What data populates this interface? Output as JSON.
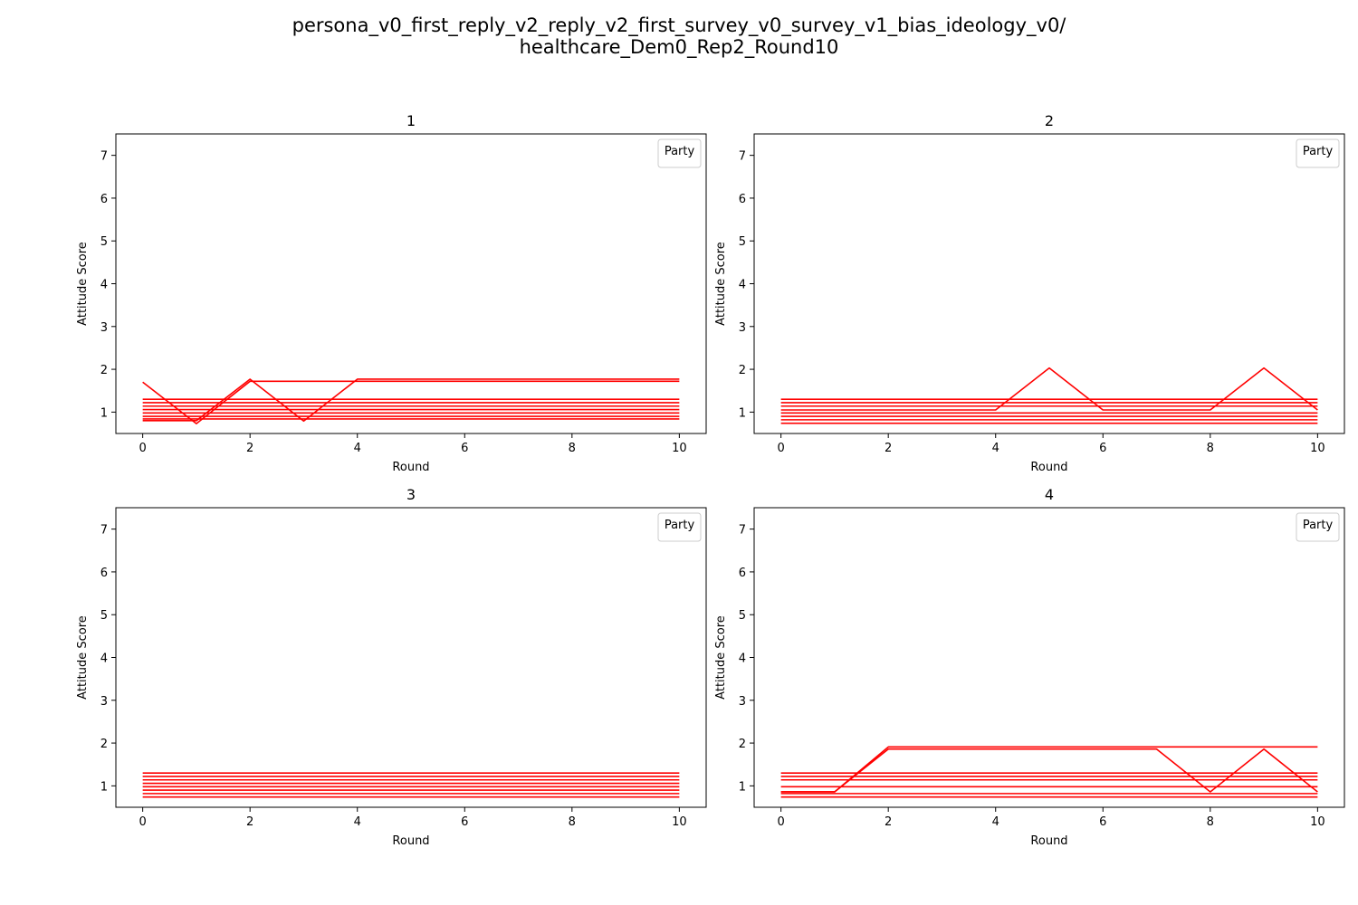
{
  "figure": {
    "title_line1": "persona_v0_first_reply_v2_reply_v2_first_survey_v0_survey_v1_bias_ideology_v0/",
    "title_line2": "healthcare_Dem0_Rep2_Round10"
  },
  "colors": {
    "line": "#ff0000",
    "axis": "#000000",
    "legend_border": "#cccccc"
  },
  "chart_data": [
    {
      "type": "line",
      "title": "1",
      "xlabel": "Round",
      "ylabel": "Attitude Score",
      "xlim": [
        -0.5,
        10.5
      ],
      "ylim": [
        0.5,
        7.5
      ],
      "xticks": [
        0,
        2,
        4,
        6,
        8,
        10
      ],
      "yticks": [
        1,
        2,
        3,
        4,
        5,
        6,
        7
      ],
      "grid": false,
      "legend": {
        "title": "Party",
        "placement": "upper right"
      },
      "x": [
        0,
        1,
        2,
        3,
        4,
        5,
        6,
        7,
        8,
        9,
        10
      ],
      "series": [
        {
          "values": [
            1.7,
            0.73,
            1.72,
            1.72,
            1.72,
            1.72,
            1.72,
            1.72,
            1.72,
            1.72,
            1.72
          ]
        },
        {
          "values": [
            0.8,
            0.8,
            1.77,
            0.79,
            1.77,
            1.77,
            1.77,
            1.77,
            1.77,
            1.77,
            1.77
          ]
        },
        {
          "values": [
            1.3,
            1.3,
            1.3,
            1.3,
            1.3,
            1.3,
            1.3,
            1.3,
            1.3,
            1.3,
            1.3
          ]
        },
        {
          "values": [
            1.22,
            1.22,
            1.22,
            1.22,
            1.22,
            1.22,
            1.22,
            1.22,
            1.22,
            1.22,
            1.22
          ]
        },
        {
          "values": [
            1.14,
            1.14,
            1.14,
            1.14,
            1.14,
            1.14,
            1.14,
            1.14,
            1.14,
            1.14,
            1.14
          ]
        },
        {
          "values": [
            1.06,
            1.06,
            1.06,
            1.06,
            1.06,
            1.06,
            1.06,
            1.06,
            1.06,
            1.06,
            1.06
          ]
        },
        {
          "values": [
            0.98,
            0.98,
            0.98,
            0.98,
            0.98,
            0.98,
            0.98,
            0.98,
            0.98,
            0.98,
            0.98
          ]
        },
        {
          "values": [
            0.9,
            0.9,
            0.9,
            0.9,
            0.9,
            0.9,
            0.9,
            0.9,
            0.9,
            0.9,
            0.9
          ]
        },
        {
          "values": [
            0.84,
            0.84,
            0.84,
            0.84,
            0.84,
            0.84,
            0.84,
            0.84,
            0.84,
            0.84,
            0.84
          ]
        }
      ]
    },
    {
      "type": "line",
      "title": "2",
      "xlabel": "Round",
      "ylabel": "Attitude Score",
      "xlim": [
        -0.5,
        10.5
      ],
      "ylim": [
        0.5,
        7.5
      ],
      "xticks": [
        0,
        2,
        4,
        6,
        8,
        10
      ],
      "yticks": [
        1,
        2,
        3,
        4,
        5,
        6,
        7
      ],
      "grid": false,
      "legend": {
        "title": "Party",
        "placement": "upper right"
      },
      "x": [
        0,
        1,
        2,
        3,
        4,
        5,
        6,
        7,
        8,
        9,
        10
      ],
      "series": [
        {
          "values": [
            1.05,
            1.05,
            1.05,
            1.05,
            1.05,
            2.03,
            1.05,
            1.05,
            1.05,
            2.03,
            1.05
          ]
        },
        {
          "values": [
            1.3,
            1.3,
            1.3,
            1.3,
            1.3,
            1.3,
            1.3,
            1.3,
            1.3,
            1.3,
            1.3
          ]
        },
        {
          "values": [
            1.22,
            1.22,
            1.22,
            1.22,
            1.22,
            1.22,
            1.22,
            1.22,
            1.22,
            1.22,
            1.22
          ]
        },
        {
          "values": [
            1.14,
            1.14,
            1.14,
            1.14,
            1.14,
            1.14,
            1.14,
            1.14,
            1.14,
            1.14,
            1.14
          ]
        },
        {
          "values": [
            0.98,
            0.98,
            0.98,
            0.98,
            0.98,
            0.98,
            0.98,
            0.98,
            0.98,
            0.98,
            0.98
          ]
        },
        {
          "values": [
            0.9,
            0.9,
            0.9,
            0.9,
            0.9,
            0.9,
            0.9,
            0.9,
            0.9,
            0.9,
            0.9
          ]
        },
        {
          "values": [
            0.82,
            0.82,
            0.82,
            0.82,
            0.82,
            0.82,
            0.82,
            0.82,
            0.82,
            0.82,
            0.82
          ]
        },
        {
          "values": [
            0.74,
            0.74,
            0.74,
            0.74,
            0.74,
            0.74,
            0.74,
            0.74,
            0.74,
            0.74,
            0.74
          ]
        }
      ]
    },
    {
      "type": "line",
      "title": "3",
      "xlabel": "Round",
      "ylabel": "Attitude Score",
      "xlim": [
        -0.5,
        10.5
      ],
      "ylim": [
        0.5,
        7.5
      ],
      "xticks": [
        0,
        2,
        4,
        6,
        8,
        10
      ],
      "yticks": [
        1,
        2,
        3,
        4,
        5,
        6,
        7
      ],
      "grid": false,
      "legend": {
        "title": "Party",
        "placement": "upper right"
      },
      "x": [
        0,
        1,
        2,
        3,
        4,
        5,
        6,
        7,
        8,
        9,
        10
      ],
      "series": [
        {
          "values": [
            1.3,
            1.3,
            1.3,
            1.3,
            1.3,
            1.3,
            1.3,
            1.3,
            1.3,
            1.3,
            1.3
          ]
        },
        {
          "values": [
            1.22,
            1.22,
            1.22,
            1.22,
            1.22,
            1.22,
            1.22,
            1.22,
            1.22,
            1.22,
            1.22
          ]
        },
        {
          "values": [
            1.14,
            1.14,
            1.14,
            1.14,
            1.14,
            1.14,
            1.14,
            1.14,
            1.14,
            1.14,
            1.14
          ]
        },
        {
          "values": [
            1.06,
            1.06,
            1.06,
            1.06,
            1.06,
            1.06,
            1.06,
            1.06,
            1.06,
            1.06,
            1.06
          ]
        },
        {
          "values": [
            0.98,
            0.98,
            0.98,
            0.98,
            0.98,
            0.98,
            0.98,
            0.98,
            0.98,
            0.98,
            0.98
          ]
        },
        {
          "values": [
            0.9,
            0.9,
            0.9,
            0.9,
            0.9,
            0.9,
            0.9,
            0.9,
            0.9,
            0.9,
            0.9
          ]
        },
        {
          "values": [
            0.82,
            0.82,
            0.82,
            0.82,
            0.82,
            0.82,
            0.82,
            0.82,
            0.82,
            0.82,
            0.82
          ]
        },
        {
          "values": [
            0.74,
            0.74,
            0.74,
            0.74,
            0.74,
            0.74,
            0.74,
            0.74,
            0.74,
            0.74,
            0.74
          ]
        }
      ]
    },
    {
      "type": "line",
      "title": "4",
      "xlabel": "Round",
      "ylabel": "Attitude Score",
      "xlim": [
        -0.5,
        10.5
      ],
      "ylim": [
        0.5,
        7.5
      ],
      "xticks": [
        0,
        2,
        4,
        6,
        8,
        10
      ],
      "yticks": [
        1,
        2,
        3,
        4,
        5,
        6,
        7
      ],
      "grid": false,
      "legend": {
        "title": "Party",
        "placement": "upper right"
      },
      "x": [
        0,
        1,
        2,
        3,
        4,
        5,
        6,
        7,
        8,
        9,
        10
      ],
      "series": [
        {
          "values": [
            0.86,
            0.86,
            1.91,
            1.91,
            1.91,
            1.91,
            1.91,
            1.91,
            1.91,
            1.91,
            1.91
          ]
        },
        {
          "values": [
            0.86,
            0.86,
            1.86,
            1.86,
            1.86,
            1.86,
            1.86,
            1.86,
            0.86,
            1.86,
            0.86
          ]
        },
        {
          "values": [
            1.3,
            1.3,
            1.3,
            1.3,
            1.3,
            1.3,
            1.3,
            1.3,
            1.3,
            1.3,
            1.3
          ]
        },
        {
          "values": [
            1.22,
            1.22,
            1.22,
            1.22,
            1.22,
            1.22,
            1.22,
            1.22,
            1.22,
            1.22,
            1.22
          ]
        },
        {
          "values": [
            1.14,
            1.14,
            1.14,
            1.14,
            1.14,
            1.14,
            1.14,
            1.14,
            1.14,
            1.14,
            1.14
          ]
        },
        {
          "values": [
            0.98,
            0.98,
            0.98,
            0.98,
            0.98,
            0.98,
            0.98,
            0.98,
            0.98,
            0.98,
            0.98
          ]
        },
        {
          "values": [
            0.82,
            0.82,
            0.82,
            0.82,
            0.82,
            0.82,
            0.82,
            0.82,
            0.82,
            0.82,
            0.82
          ]
        },
        {
          "values": [
            0.74,
            0.74,
            0.74,
            0.74,
            0.74,
            0.74,
            0.74,
            0.74,
            0.74,
            0.74,
            0.74
          ]
        }
      ]
    }
  ]
}
